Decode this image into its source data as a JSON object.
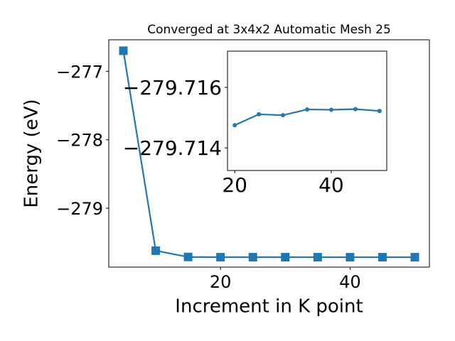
{
  "chart_data": [
    {
      "type": "line",
      "title": "Converged at 3x4x2 Automatic Mesh 25",
      "x_label": "Increment in K point",
      "y_label": "Energy (eV)",
      "x": [
        5,
        10,
        15,
        20,
        25,
        30,
        35,
        40,
        45,
        50
      ],
      "series": [
        {
          "color": "#1f77b4",
          "marker": "square",
          "values": [
            -276.7,
            -279.62,
            -279.712,
            -279.71475,
            -279.71511,
            -279.71508,
            -279.71527,
            -279.71526,
            -279.71528,
            -279.71522
          ]
        }
      ],
      "xlim": [
        2.75,
        52.25
      ],
      "xticks": [
        20,
        40
      ],
      "ylim": [
        -279.86,
        -276.54
      ],
      "yticks": [
        {
          "value": -279,
          "label": "−279"
        },
        {
          "value": -278,
          "label": "−278"
        },
        {
          "value": -277,
          "label": "−277"
        }
      ]
    },
    {
      "type": "line",
      "x": [
        20,
        25,
        30,
        35,
        40,
        45,
        50
      ],
      "series": [
        {
          "color": "#1f77b4",
          "marker": "circle",
          "values": [
            -279.71475,
            -279.71511,
            -279.71508,
            -279.71527,
            -279.71526,
            -279.71528,
            -279.71522
          ]
        }
      ],
      "xlim": [
        18.5,
        51.5
      ],
      "xticks": [
        20,
        40
      ],
      "ylim": [
        -279.71325,
        -279.7172
      ],
      "yticks": [
        {
          "value": -279.716,
          "label": "−279.716"
        },
        {
          "value": -279.714,
          "label": "−279.714"
        }
      ]
    }
  ]
}
